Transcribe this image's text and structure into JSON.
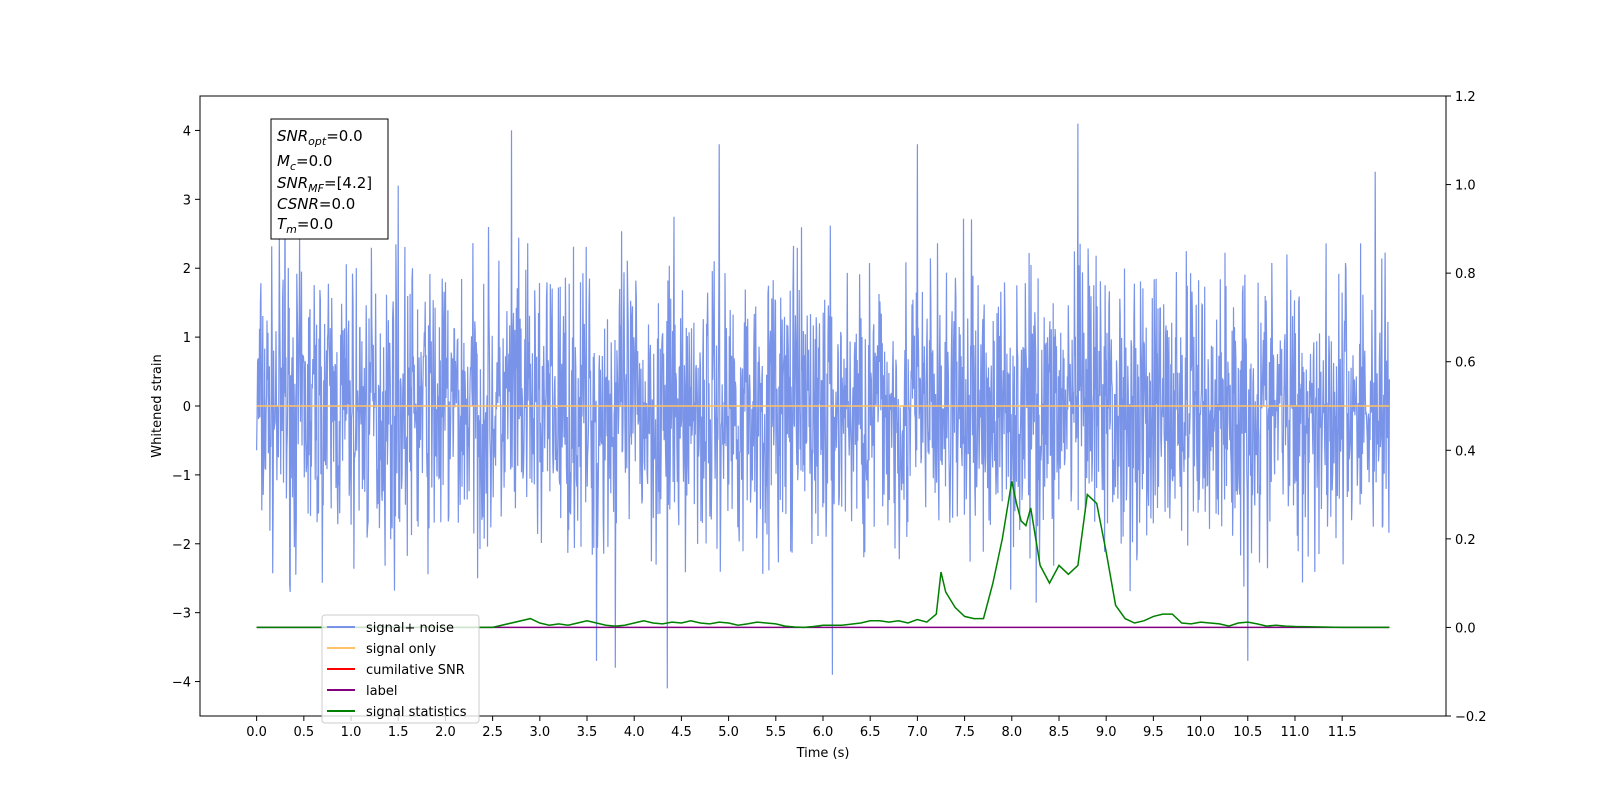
{
  "chart_data": {
    "type": "line",
    "xlabel": "Time (s)",
    "ylabel": "Whitened strain",
    "xlim": [
      -0.6,
      12.6
    ],
    "ylim": [
      -4.5,
      4.5
    ],
    "y2lim": [
      -0.2,
      1.2
    ],
    "x_ticks": [
      0.0,
      0.5,
      1.0,
      1.5,
      2.0,
      2.5,
      3.0,
      3.5,
      4.0,
      4.5,
      5.0,
      5.5,
      6.0,
      6.5,
      7.0,
      7.5,
      8.0,
      8.5,
      9.0,
      9.5,
      10.0,
      10.5,
      11.0,
      11.5
    ],
    "x_tick_labels": [
      "0.0",
      "0.5",
      "1.0",
      "1.5",
      "2.0",
      "2.5",
      "3.0",
      "3.5",
      "4.0",
      "4.5",
      "5.0",
      "5.5",
      "6.0",
      "6.5",
      "7.0",
      "7.5",
      "8.0",
      "8.5",
      "9.0",
      "9.5",
      "10.0",
      "10.5",
      "11.0",
      "11.5"
    ],
    "y_ticks": [
      4,
      3,
      2,
      1,
      0,
      -1,
      -2,
      -3,
      -4
    ],
    "y_tick_labels": [
      "4",
      "3",
      "2",
      "1",
      "0",
      "−1",
      "−2",
      "−3",
      "−4"
    ],
    "y2_ticks": [
      1.2,
      1.0,
      0.8,
      0.6,
      0.4,
      0.2,
      0.0,
      -0.2
    ],
    "y2_tick_labels": [
      "1.2",
      "1.0",
      "0.8",
      "0.6",
      "0.4",
      "0.2",
      "0.0",
      "−0.2"
    ],
    "grid": false,
    "legend_position": "lower-left",
    "annotation": {
      "snr_opt": {
        "base": "SNR",
        "sub": "opt",
        "value": "=0.0"
      },
      "mc": {
        "base": "M",
        "sub": "c",
        "value": "=0.0"
      },
      "snr_mf": {
        "base": "SNR",
        "sub": "MF",
        "value": "=[4.2]"
      },
      "csnr": {
        "base": "CSNR",
        "sub": "",
        "value": "=0.0"
      },
      "tm": {
        "base": "T",
        "sub": "m",
        "value": "=0.0"
      }
    },
    "series": [
      {
        "name": "signal+ noise",
        "color": "#7893e8",
        "axis": "left",
        "kind": "noise",
        "x_range": [
          0.0,
          12.0
        ],
        "typical_range": [
          -2.5,
          2.4
        ],
        "peaks": [
          [
            0.3,
            3.3
          ],
          [
            1.5,
            3.2
          ],
          [
            2.7,
            4.0
          ],
          [
            3.6,
            -3.7
          ],
          [
            3.8,
            -3.8
          ],
          [
            4.35,
            -4.1
          ],
          [
            4.9,
            3.8
          ],
          [
            6.1,
            -3.9
          ],
          [
            7.0,
            3.8
          ],
          [
            8.7,
            4.1
          ],
          [
            10.5,
            -3.7
          ],
          [
            11.85,
            3.4
          ]
        ]
      },
      {
        "name": "signal only",
        "color": "#ffc266",
        "axis": "left",
        "x": [
          0.0,
          12.0
        ],
        "y": [
          0.0,
          0.0
        ]
      },
      {
        "name": "cumilative SNR",
        "color": "#ff0000",
        "axis": "right",
        "x": [],
        "y": []
      },
      {
        "name": "label",
        "color": "#800080",
        "axis": "right",
        "x": [
          0.0,
          12.0
        ],
        "y": [
          0.0,
          0.0
        ]
      },
      {
        "name": "signal statistics",
        "color": "#008000",
        "axis": "right",
        "x": [
          0.0,
          2.5,
          2.9,
          3.0,
          3.1,
          3.2,
          3.3,
          3.4,
          3.5,
          3.6,
          3.7,
          3.8,
          3.9,
          4.0,
          4.1,
          4.2,
          4.3,
          4.4,
          4.5,
          4.6,
          4.7,
          4.8,
          4.9,
          5.0,
          5.1,
          5.2,
          5.3,
          5.4,
          5.5,
          5.6,
          5.7,
          5.8,
          5.9,
          6.0,
          6.2,
          6.4,
          6.5,
          6.6,
          6.7,
          6.8,
          6.9,
          7.0,
          7.1,
          7.2,
          7.25,
          7.3,
          7.4,
          7.5,
          7.6,
          7.7,
          7.8,
          7.9,
          8.0,
          8.05,
          8.1,
          8.15,
          8.2,
          8.3,
          8.4,
          8.5,
          8.6,
          8.7,
          8.8,
          8.9,
          9.0,
          9.1,
          9.2,
          9.3,
          9.4,
          9.5,
          9.6,
          9.7,
          9.8,
          9.9,
          10.0,
          10.1,
          10.2,
          10.3,
          10.4,
          10.5,
          10.6,
          10.7,
          10.8,
          10.9,
          11.0,
          11.5,
          12.0
        ],
        "y": [
          0.0,
          0.0,
          0.02,
          0.01,
          0.005,
          0.008,
          0.005,
          0.01,
          0.015,
          0.01,
          0.005,
          0.003,
          0.005,
          0.01,
          0.015,
          0.01,
          0.008,
          0.012,
          0.01,
          0.015,
          0.01,
          0.008,
          0.012,
          0.01,
          0.005,
          0.008,
          0.012,
          0.01,
          0.008,
          0.003,
          0.001,
          0.0,
          0.002,
          0.005,
          0.005,
          0.01,
          0.015,
          0.015,
          0.012,
          0.015,
          0.01,
          0.018,
          0.012,
          0.03,
          0.125,
          0.08,
          0.045,
          0.025,
          0.02,
          0.02,
          0.1,
          0.2,
          0.33,
          0.28,
          0.24,
          0.23,
          0.27,
          0.14,
          0.1,
          0.14,
          0.12,
          0.14,
          0.3,
          0.28,
          0.17,
          0.05,
          0.02,
          0.01,
          0.015,
          0.025,
          0.03,
          0.03,
          0.01,
          0.008,
          0.012,
          0.01,
          0.008,
          0.003,
          0.01,
          0.012,
          0.008,
          0.003,
          0.005,
          0.003,
          0.002,
          0.0,
          0.0
        ]
      }
    ]
  }
}
